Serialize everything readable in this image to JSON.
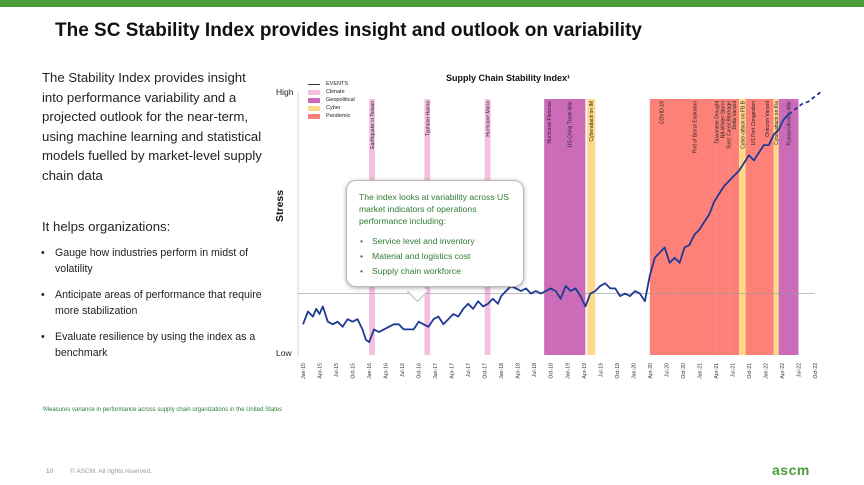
{
  "slide": {
    "title": "The SC Stability Index provides insight and outlook on variability",
    "intro": "The Stability Index provides insight into performance variability and a projected outlook for the near-term, using machine learning and statistical models fuelled by market-level supply chain data",
    "helps_heading": "It helps organizations:",
    "bullets": [
      "Gauge how industries perform in midst of volatility",
      "Anticipate areas of performance that require more stabilization",
      "Evaluate resilience by using the index as a benchmark"
    ],
    "footnote": "¹Measures variance in performance across supply chain organizations in the United States",
    "page_number": "10",
    "copyright": "© ASCM. All rights reserved.",
    "logo": "ascm",
    "brand_color": "#4a9d3a"
  },
  "callout": {
    "text": "The index looks at variability across US market indicators of operations performance including:",
    "items": [
      "Service level and inventory",
      "Material and logistics cost",
      "Supply chain workforce"
    ]
  },
  "chart_data": {
    "type": "line",
    "title": "Supply Chain Stability Index¹",
    "ylabel": "Stress",
    "y_high_label": "High",
    "y_low_label": "Low",
    "legend": {
      "title": "EVENTS",
      "items": [
        {
          "name": "Climate",
          "color": "#f6bfe0"
        },
        {
          "name": "Geopolitical",
          "color": "#cc6cb8"
        },
        {
          "name": "Cyber",
          "color": "#ffd98a"
        },
        {
          "name": "Pandemic",
          "color": "#fd8079"
        }
      ]
    },
    "x_labels": [
      "Jan-15",
      "Apr-15",
      "Jul-15",
      "Oct-15",
      "Jan-16",
      "Apr-16",
      "Jul-16",
      "Oct-16",
      "Jan-17",
      "Apr-17",
      "Jul-17",
      "Oct-17",
      "Jan-18",
      "Apr-18",
      "Jul-18",
      "Oct-18",
      "Jan-19",
      "Apr-19",
      "Jul-19",
      "Oct-19",
      "Jan-20",
      "Apr-20",
      "Jul-20",
      "Oct-20",
      "Jan-21",
      "Apr-21",
      "Jul-21",
      "Oct-21",
      "Jan-22",
      "Apr-22",
      "Jul-22",
      "Oct-22"
    ],
    "events": [
      {
        "label": "Earthquake in Taiwan",
        "type": "Climate",
        "start": 4.0,
        "end": 4.35
      },
      {
        "label": "Typhoon Haima",
        "type": "Climate",
        "start": 7.35,
        "end": 7.7
      },
      {
        "label": "Hurricane Maria",
        "type": "Climate",
        "start": 11.0,
        "end": 11.35
      },
      {
        "label": "Hurricane Florence",
        "type": "Geopolitical",
        "start": 14.6,
        "end": 15.2
      },
      {
        "label": "US-China Trade War",
        "type": "Geopolitical",
        "start": 15.2,
        "end": 17.1
      },
      {
        "label": "Cyberattack on IM",
        "type": "Cyber",
        "start": 17.2,
        "end": 17.7
      },
      {
        "label": "COVID-19",
        "type": "Pandemic",
        "start": 21.0,
        "end": 22.4
      },
      {
        "label": "Port of Beirut Explosion",
        "type": "Pandemic",
        "start": 22.4,
        "end": 25.0
      },
      {
        "label": "Taiwanese Drought\nNA Winter Storm\nSuez Canal Blockage",
        "type": "Pandemic",
        "start": 25.0,
        "end": 25.8
      },
      {
        "label": "Delta Variant",
        "type": "Pandemic",
        "start": 25.8,
        "end": 26.4
      },
      {
        "label": "Cyber-attack on FB.B",
        "type": "Cyber",
        "start": 26.4,
        "end": 26.8
      },
      {
        "label": "US Port Congestion",
        "type": "Pandemic",
        "start": 26.8,
        "end": 27.7
      },
      {
        "label": "Omicron Variant",
        "type": "Pandemic",
        "start": 27.7,
        "end": 28.5
      },
      {
        "label": "Cyber-attack on Kia",
        "type": "Cyber",
        "start": 28.5,
        "end": 28.8
      },
      {
        "label": "Russia-Ukraine War",
        "type": "Geopolitical",
        "start": 28.8,
        "end": 30.0
      }
    ],
    "reference_line": 0.24,
    "series": [
      {
        "name": "Index",
        "x": [
          0.0,
          0.3,
          0.6,
          0.8,
          1.0,
          1.2,
          1.5,
          1.8,
          2.1,
          2.4,
          2.7,
          3.0,
          3.3,
          3.6,
          3.8,
          4.0,
          4.3,
          4.6,
          4.9,
          5.2,
          5.5,
          5.8,
          6.1,
          6.4,
          6.7,
          7.0,
          7.3,
          7.6,
          7.9,
          8.2,
          8.5,
          8.8,
          9.1,
          9.4,
          9.7,
          10.0,
          10.3,
          10.6,
          10.9,
          11.2,
          11.5,
          11.8,
          12.0,
          12.3,
          12.6,
          12.9,
          13.2,
          13.5,
          13.8,
          14.1,
          14.4,
          14.7,
          15.0,
          15.3,
          15.6,
          15.9,
          16.2,
          16.5,
          16.8,
          17.1,
          17.4,
          17.7,
          18.0,
          18.3,
          18.6,
          18.9,
          19.2,
          19.5,
          19.8,
          20.1,
          20.4,
          20.7,
          21.0,
          21.3,
          21.6,
          21.9,
          22.2,
          22.5,
          22.8,
          23.1,
          23.4,
          23.7,
          24.0,
          24.3,
          24.6,
          24.9,
          25.2,
          25.5,
          25.8,
          26.1,
          26.4,
          26.7,
          27.0,
          27.3,
          27.6,
          27.9,
          28.2,
          28.5,
          28.8,
          29.1,
          29.4
        ],
        "y": [
          0.12,
          0.17,
          0.15,
          0.18,
          0.16,
          0.19,
          0.13,
          0.12,
          0.13,
          0.11,
          0.14,
          0.13,
          0.14,
          0.1,
          0.06,
          0.05,
          0.1,
          0.09,
          0.1,
          0.11,
          0.12,
          0.12,
          0.1,
          0.1,
          0.1,
          0.13,
          0.12,
          0.11,
          0.14,
          0.15,
          0.12,
          0.14,
          0.16,
          0.15,
          0.18,
          0.2,
          0.18,
          0.21,
          0.19,
          0.2,
          0.22,
          0.2,
          0.23,
          0.25,
          0.27,
          0.26,
          0.25,
          0.26,
          0.24,
          0.25,
          0.24,
          0.25,
          0.26,
          0.25,
          0.22,
          0.27,
          0.25,
          0.26,
          0.23,
          0.19,
          0.24,
          0.25,
          0.27,
          0.28,
          0.26,
          0.26,
          0.23,
          0.24,
          0.23,
          0.25,
          0.24,
          0.21,
          0.31,
          0.38,
          0.4,
          0.42,
          0.36,
          0.38,
          0.36,
          0.42,
          0.43,
          0.47,
          0.49,
          0.52,
          0.55,
          0.6,
          0.63,
          0.66,
          0.68,
          0.7,
          0.72,
          0.75,
          0.78,
          0.76,
          0.79,
          0.82,
          0.82,
          0.86,
          0.88,
          0.92,
          0.94
        ]
      },
      {
        "name": "Projection",
        "x": [
          29.4,
          29.8,
          30.2,
          30.6,
          31.0,
          31.4
        ],
        "y": [
          0.94,
          0.96,
          0.98,
          0.99,
          1.01,
          1.03
        ]
      }
    ]
  }
}
